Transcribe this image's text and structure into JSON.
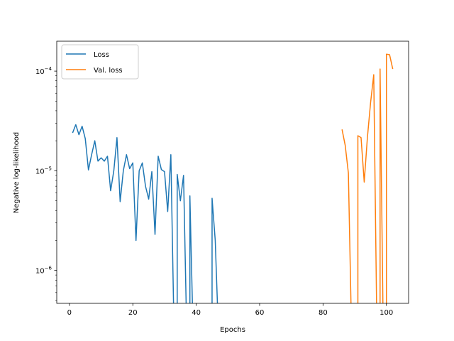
{
  "chart_data": {
    "type": "line",
    "xlabel": "Epochs",
    "ylabel": "Negative log-likelihood",
    "xlim": [
      -4,
      107
    ],
    "ylim_log10": [
      -6.33,
      -3.7
    ],
    "yscale": "log",
    "grid": false,
    "legend_position": "upper-left",
    "x_ticks": [
      0,
      20,
      40,
      60,
      80,
      100
    ],
    "y_ticks": [
      {
        "exp": -6,
        "label_base": "10",
        "label_exp": "−6"
      },
      {
        "exp": -5,
        "label_base": "10",
        "label_exp": "−5"
      },
      {
        "exp": -4,
        "label_base": "10",
        "label_exp": "−4"
      }
    ],
    "series": [
      {
        "name": "Loss",
        "color": "#1f77b4",
        "x": [
          1,
          2,
          3,
          4,
          5,
          6,
          7,
          8,
          9,
          10,
          11,
          12,
          13,
          14,
          15,
          16,
          17,
          18,
          19,
          20,
          21,
          22,
          23,
          24,
          25,
          26,
          27,
          28,
          29,
          30,
          31,
          32,
          33,
          34,
          35,
          36,
          37,
          38,
          39,
          40,
          41,
          42,
          43,
          44,
          45,
          46,
          47
        ],
        "y": [
          2.4e-05,
          2.9e-05,
          2.3e-05,
          2.8e-05,
          2.1e-05,
          1.02e-05,
          1.45e-05,
          2e-05,
          1.25e-05,
          1.35e-05,
          1.25e-05,
          1.4e-05,
          6.3e-06,
          1e-05,
          2.15e-05,
          4.9e-06,
          1e-05,
          1.45e-05,
          1.05e-05,
          1.2e-05,
          2e-06,
          1e-05,
          1.2e-05,
          7e-06,
          5.2e-06,
          9.8e-06,
          2.3e-06,
          1.4e-05,
          1.03e-05,
          9.8e-06,
          3.9e-06,
          1.45e-05,
          null,
          9.2e-06,
          5e-06,
          9e-06,
          null,
          5.6e-06,
          null,
          null,
          null,
          null,
          null,
          null,
          5.3e-06,
          2e-06,
          null
        ]
      },
      {
        "name": "Val. loss",
        "color": "#ff7f0e",
        "x": [
          86,
          87,
          88,
          89,
          90,
          91,
          92,
          93,
          94,
          95,
          96,
          97,
          98,
          99,
          100,
          101,
          102
        ],
        "y": [
          2.6e-05,
          1.8e-05,
          9.5e-06,
          null,
          null,
          2.25e-05,
          2.15e-05,
          7.7e-06,
          2.15e-05,
          4.8e-05,
          9.2e-05,
          null,
          0.000105,
          null,
          0.000148,
          0.000146,
          0.000105
        ]
      }
    ]
  }
}
